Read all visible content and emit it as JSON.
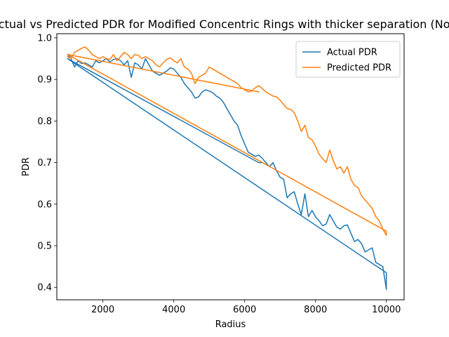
{
  "chart_data": {
    "type": "line",
    "title": "Actual vs Predicted PDR for Modified Concentric Rings with thicker separation (Nodes",
    "xlabel": "Radius",
    "ylabel": "PDR",
    "xlim": [
      700,
      10500
    ],
    "ylim": [
      0.37,
      1.01
    ],
    "xticks": [
      2000,
      4000,
      6000,
      8000,
      10000
    ],
    "yticks": [
      0.4,
      0.5,
      0.6,
      0.7,
      0.8,
      0.9,
      1.0
    ],
    "xtick_labels": [
      "2000",
      "4000",
      "6000",
      "8000",
      "10000"
    ],
    "ytick_labels": [
      "0.4",
      "0.5",
      "0.6",
      "0.7",
      "0.8",
      "0.9",
      "1.0"
    ],
    "grid": false,
    "legend_position": "top-right",
    "series": [
      {
        "name": "Actual PDR",
        "color": "#1f77b4",
        "x": [
          1000,
          1100,
          1200,
          1300,
          1400,
          1500,
          1600,
          1700,
          1800,
          1900,
          2000,
          2100,
          2200,
          2300,
          2400,
          2500,
          2600,
          2700,
          2800,
          2900,
          3000,
          3100,
          3200,
          3300,
          3400,
          3500,
          3600,
          3700,
          3800,
          3900,
          4000,
          4100,
          4200,
          4300,
          4400,
          4500,
          4600,
          4700,
          4800,
          4900,
          5000,
          5100,
          5200,
          5300,
          5400,
          5500,
          5600,
          5700,
          5800,
          5900,
          6000,
          6100,
          6200,
          6300,
          6400,
          6500,
          6600,
          6700,
          6800,
          6900,
          7000,
          7100,
          7200,
          7300,
          7400,
          7500,
          7600,
          7700,
          7800,
          7900,
          8000,
          8100,
          8200,
          8300,
          8400,
          8500,
          8600,
          8700,
          8800,
          8900,
          9000,
          9100,
          9200,
          9300,
          9400,
          9500,
          9600,
          9700,
          9800,
          9900,
          10000,
          10000,
          1000,
          1000,
          6400,
          6500
        ],
        "y": [
          0.96,
          0.95,
          0.93,
          0.945,
          0.938,
          0.94,
          0.935,
          0.93,
          0.945,
          0.94,
          0.945,
          0.95,
          0.942,
          0.948,
          0.95,
          0.945,
          0.935,
          0.945,
          0.905,
          0.94,
          0.935,
          0.925,
          0.95,
          0.935,
          0.92,
          0.915,
          0.91,
          0.915,
          0.92,
          0.928,
          0.925,
          0.915,
          0.905,
          0.89,
          0.88,
          0.87,
          0.855,
          0.858,
          0.87,
          0.875,
          0.872,
          0.868,
          0.86,
          0.855,
          0.845,
          0.83,
          0.815,
          0.8,
          0.79,
          0.765,
          0.745,
          0.725,
          0.72,
          0.715,
          0.718,
          0.71,
          0.7,
          0.69,
          0.7,
          0.68,
          0.665,
          0.66,
          0.615,
          0.625,
          0.63,
          0.6,
          0.575,
          0.625,
          0.57,
          0.585,
          0.57,
          0.56,
          0.548,
          0.552,
          0.575,
          0.56,
          0.545,
          0.54,
          0.548,
          0.55,
          0.53,
          0.51,
          0.515,
          0.505,
          0.485,
          0.49,
          0.495,
          0.46,
          0.455,
          0.45,
          0.395,
          0.435,
          0.95,
          0.95,
          0.7,
          0.7
        ]
      },
      {
        "name": "Predicted PDR",
        "color": "#ff7f0e",
        "x": [
          1000,
          1100,
          1200,
          1300,
          1400,
          1500,
          1600,
          1700,
          1800,
          1900,
          2000,
          2100,
          2200,
          2300,
          2400,
          2500,
          2600,
          2700,
          2800,
          2900,
          3000,
          3100,
          3200,
          3300,
          3400,
          3500,
          3600,
          3700,
          3800,
          3900,
          4000,
          4100,
          4200,
          4300,
          4400,
          4500,
          4600,
          4700,
          4800,
          4900,
          5000,
          5100,
          5200,
          5300,
          5400,
          5500,
          5600,
          5700,
          5800,
          5900,
          6000,
          6100,
          6200,
          6300,
          6400,
          6500,
          6600,
          6700,
          6800,
          6900,
          7000,
          7100,
          7200,
          7300,
          7400,
          7500,
          7600,
          7700,
          7800,
          7900,
          8000,
          8100,
          8200,
          8300,
          8400,
          8500,
          8600,
          8700,
          8800,
          8900,
          9000,
          9100,
          9200,
          9300,
          9400,
          9500,
          9600,
          9700,
          9800,
          9900,
          10000,
          10000,
          1000,
          1000,
          6400
        ],
        "y": [
          0.955,
          0.95,
          0.965,
          0.97,
          0.975,
          0.978,
          0.97,
          0.96,
          0.955,
          0.95,
          0.955,
          0.95,
          0.948,
          0.96,
          0.945,
          0.955,
          0.965,
          0.96,
          0.95,
          0.96,
          0.958,
          0.95,
          0.955,
          0.95,
          0.945,
          0.935,
          0.93,
          0.94,
          0.948,
          0.952,
          0.945,
          0.94,
          0.95,
          0.93,
          0.925,
          0.915,
          0.89,
          0.905,
          0.91,
          0.915,
          0.93,
          0.925,
          0.92,
          0.915,
          0.91,
          0.905,
          0.9,
          0.895,
          0.89,
          0.88,
          0.875,
          0.87,
          0.872,
          0.88,
          0.885,
          0.878,
          0.87,
          0.865,
          0.86,
          0.858,
          0.85,
          0.84,
          0.83,
          0.828,
          0.82,
          0.8,
          0.775,
          0.79,
          0.76,
          0.755,
          0.74,
          0.72,
          0.71,
          0.7,
          0.73,
          0.705,
          0.685,
          0.69,
          0.675,
          0.69,
          0.66,
          0.645,
          0.64,
          0.62,
          0.61,
          0.6,
          0.59,
          0.57,
          0.56,
          0.54,
          0.525,
          0.535,
          0.96,
          0.96,
          0.87
        ]
      }
    ]
  }
}
